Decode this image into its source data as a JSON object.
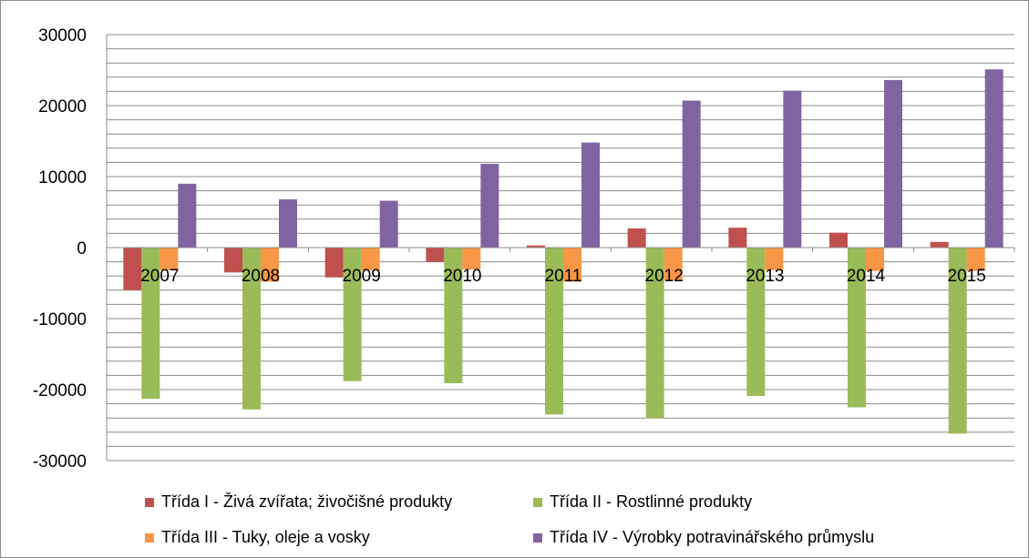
{
  "chart_data": {
    "type": "bar",
    "categories": [
      "2007",
      "2008",
      "2009",
      "2010",
      "2011",
      "2012",
      "2013",
      "2014",
      "2015"
    ],
    "series": [
      {
        "name": "Třída I - Živá zvířata; živočišné produkty",
        "color": "#c0504d",
        "values": [
          -6000,
          -3500,
          -4200,
          -2000,
          300,
          2700,
          2800,
          2100,
          800
        ]
      },
      {
        "name": "Třída II - Rostlinné produkty",
        "color": "#9bbb59",
        "values": [
          -21300,
          -22800,
          -18800,
          -19100,
          -23500,
          -24000,
          -20900,
          -22500,
          -26200
        ]
      },
      {
        "name": "Třída III - Tuky, oleje a vosky",
        "color": "#f79646",
        "values": [
          -3200,
          -4800,
          -3200,
          -3100,
          -4800,
          -4600,
          -3200,
          -3300,
          -3300
        ]
      },
      {
        "name": "Třída IV - Výrobky potravinářského průmyslu",
        "color": "#8064a2",
        "values": [
          9000,
          6800,
          6600,
          11800,
          14800,
          20700,
          22100,
          23600,
          25100
        ]
      }
    ],
    "yticks": [
      "30000",
      "20000",
      "10000",
      "0",
      "-10000",
      "-20000",
      "-30000"
    ],
    "ylim": [
      -30000,
      30000
    ],
    "minor_step": 2000,
    "grid": true,
    "legend_position": "bottom",
    "title": "",
    "xlabel": "",
    "ylabel": ""
  }
}
